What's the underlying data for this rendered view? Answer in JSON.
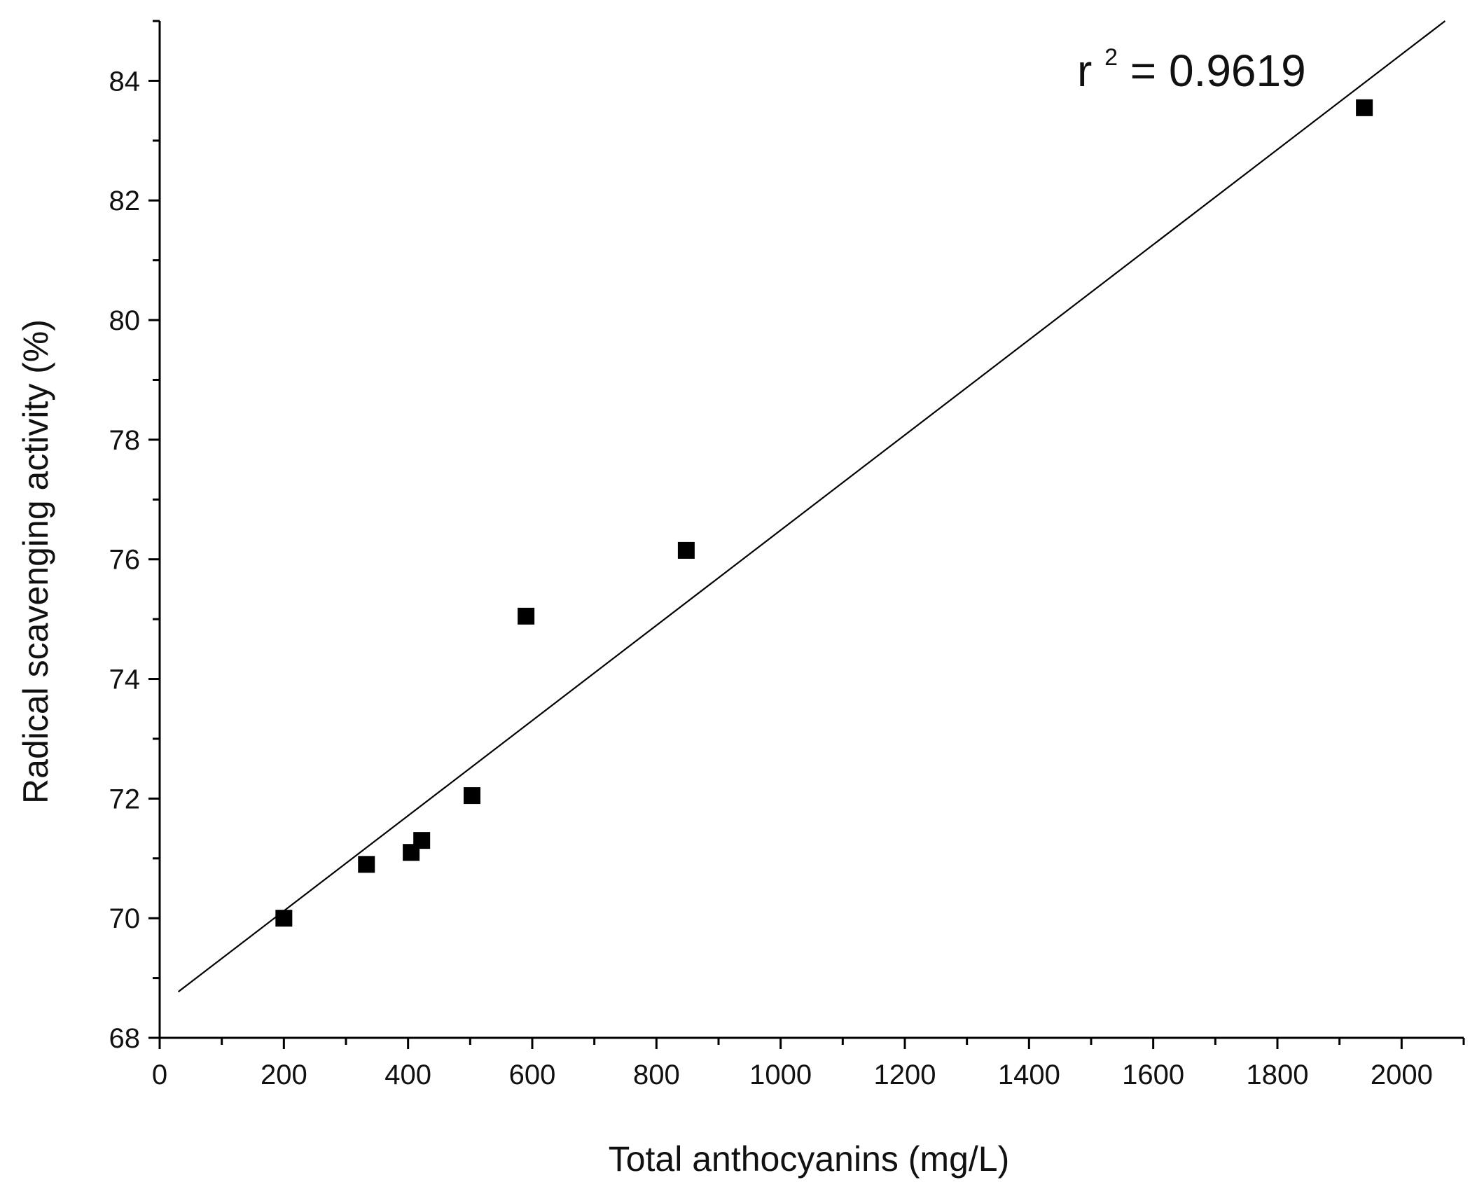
{
  "chart_data": {
    "type": "scatter",
    "title": "",
    "xlabel": "Total anthocyanins (mg/L)",
    "ylabel": "Radical scavenging activity (%)",
    "xlim": [
      0,
      2100
    ],
    "ylim": [
      68,
      85
    ],
    "xticks": [
      0,
      200,
      400,
      600,
      800,
      1000,
      1200,
      1400,
      1600,
      1800,
      2000
    ],
    "yticks": [
      68,
      70,
      72,
      74,
      76,
      78,
      80,
      82,
      84
    ],
    "grid": false,
    "marker": "square",
    "marker_color": "#000000",
    "series": [
      {
        "points": [
          {
            "x": 200,
            "y": 70.0
          },
          {
            "x": 333,
            "y": 70.9
          },
          {
            "x": 405,
            "y": 71.1
          },
          {
            "x": 422,
            "y": 71.3
          },
          {
            "x": 503,
            "y": 72.05
          },
          {
            "x": 590,
            "y": 75.05
          },
          {
            "x": 848,
            "y": 76.15
          },
          {
            "x": 1940,
            "y": 83.55
          }
        ]
      }
    ],
    "fit_line": {
      "x": [
        30,
        2070
      ],
      "y": [
        68.77,
        85.0
      ]
    },
    "annotation": {
      "base": "r",
      "superscript": "2",
      "text": " = 0.9619"
    }
  }
}
